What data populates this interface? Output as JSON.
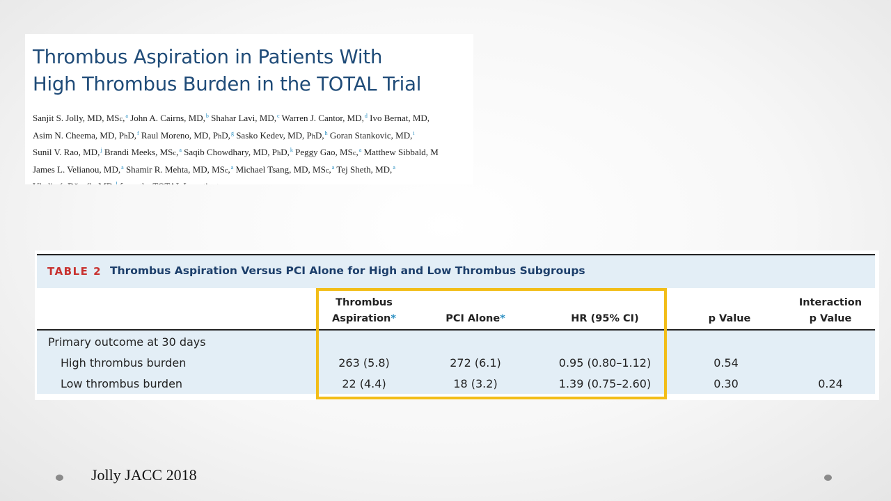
{
  "article": {
    "title_line1": "Thrombus Aspiration in Patients With",
    "title_line2": "High Thrombus Burden in the TOTAL Trial",
    "authors": [
      [
        {
          "t": "Sanjit S. Jolly, MD, MS"
        },
        {
          "t": "c",
          "sc": true
        },
        {
          "t": ","
        },
        {
          "sup": "a"
        },
        {
          "t": " John A. Cairns, MD,"
        },
        {
          "sup": "b"
        },
        {
          "t": " Shahar Lavi, MD,"
        },
        {
          "sup": "c"
        },
        {
          "t": " Warren J. Cantor, MD,"
        },
        {
          "sup": "d"
        },
        {
          "t": " Ivo Bernat, MD,"
        }
      ],
      [
        {
          "t": "Asim N. Cheema, MD, P"
        },
        {
          "t": "h",
          "sc": true
        },
        {
          "t": "D,"
        },
        {
          "sup": "f"
        },
        {
          "t": " Raul Moreno, MD, P"
        },
        {
          "t": "h",
          "sc": true
        },
        {
          "t": "D,"
        },
        {
          "sup": "g"
        },
        {
          "t": " Sasko Kedev, MD, P"
        },
        {
          "t": "h",
          "sc": true
        },
        {
          "t": "D,"
        },
        {
          "sup": "h"
        },
        {
          "t": " Goran Stankovic, MD,"
        },
        {
          "sup": "i"
        }
      ],
      [
        {
          "t": "Sunil V. Rao, MD,"
        },
        {
          "sup": "j"
        },
        {
          "t": " Brandi Meeks, MS"
        },
        {
          "t": "c",
          "sc": true
        },
        {
          "t": ","
        },
        {
          "sup": "a"
        },
        {
          "t": " Saqib Chowdhary, MD, P"
        },
        {
          "t": "h",
          "sc": true
        },
        {
          "t": "D,"
        },
        {
          "sup": "k"
        },
        {
          "t": " Peggy Gao, MS"
        },
        {
          "t": "c",
          "sc": true
        },
        {
          "t": ","
        },
        {
          "sup": "a"
        },
        {
          "t": " Matthew Sibbald, M"
        }
      ],
      [
        {
          "t": "James L. Velianou, MD,"
        },
        {
          "sup": "a"
        },
        {
          "t": " Shamir R. Mehta, MD, MS"
        },
        {
          "t": "c",
          "sc": true
        },
        {
          "t": ","
        },
        {
          "sup": "a"
        },
        {
          "t": " Michael Tsang, MD, MS"
        },
        {
          "t": "c",
          "sc": true
        },
        {
          "t": ","
        },
        {
          "sup": "a"
        },
        {
          "t": " Tej Sheth, MD,"
        },
        {
          "sup": "a"
        }
      ],
      [
        {
          "t": "Vladimír Džavík, MD,"
        },
        {
          "sup": "l"
        },
        {
          "t": " from the TOTAL Investigators"
        }
      ]
    ]
  },
  "table": {
    "label": "TABLE 2",
    "caption": "Thrombus Aspiration Versus PCI Alone for High and Low Thrombus Subgroups",
    "columns": {
      "ta_line1": "Thrombus",
      "ta_line2": "Aspiration",
      "ta_mark": "*",
      "pci": "PCI Alone",
      "pci_mark": "*",
      "hr": "HR (95% CI)",
      "p": "p Value",
      "interaction_line1": "Interaction",
      "interaction_line2": "p Value"
    },
    "section": "Primary outcome at 30 days",
    "rows": [
      {
        "label": "High thrombus burden",
        "ta": "263 (5.8)",
        "pci": "272 (6.1)",
        "hr": "0.95 (0.80–1.12)",
        "p": "0.54",
        "interaction": ""
      },
      {
        "label": "Low thrombus burden",
        "ta": "22 (4.4)",
        "pci": "18 (3.2)",
        "hr": "1.39 (0.75–2.60)",
        "p": "0.30",
        "interaction": "0.24"
      }
    ]
  },
  "citation": "Jolly JACC 2018",
  "colors": {
    "title_blue": "#1f4b78",
    "table_label_red": "#c8312f",
    "highlight_yellow": "#f2bd18",
    "table_row_tint": "#e3eef6"
  }
}
